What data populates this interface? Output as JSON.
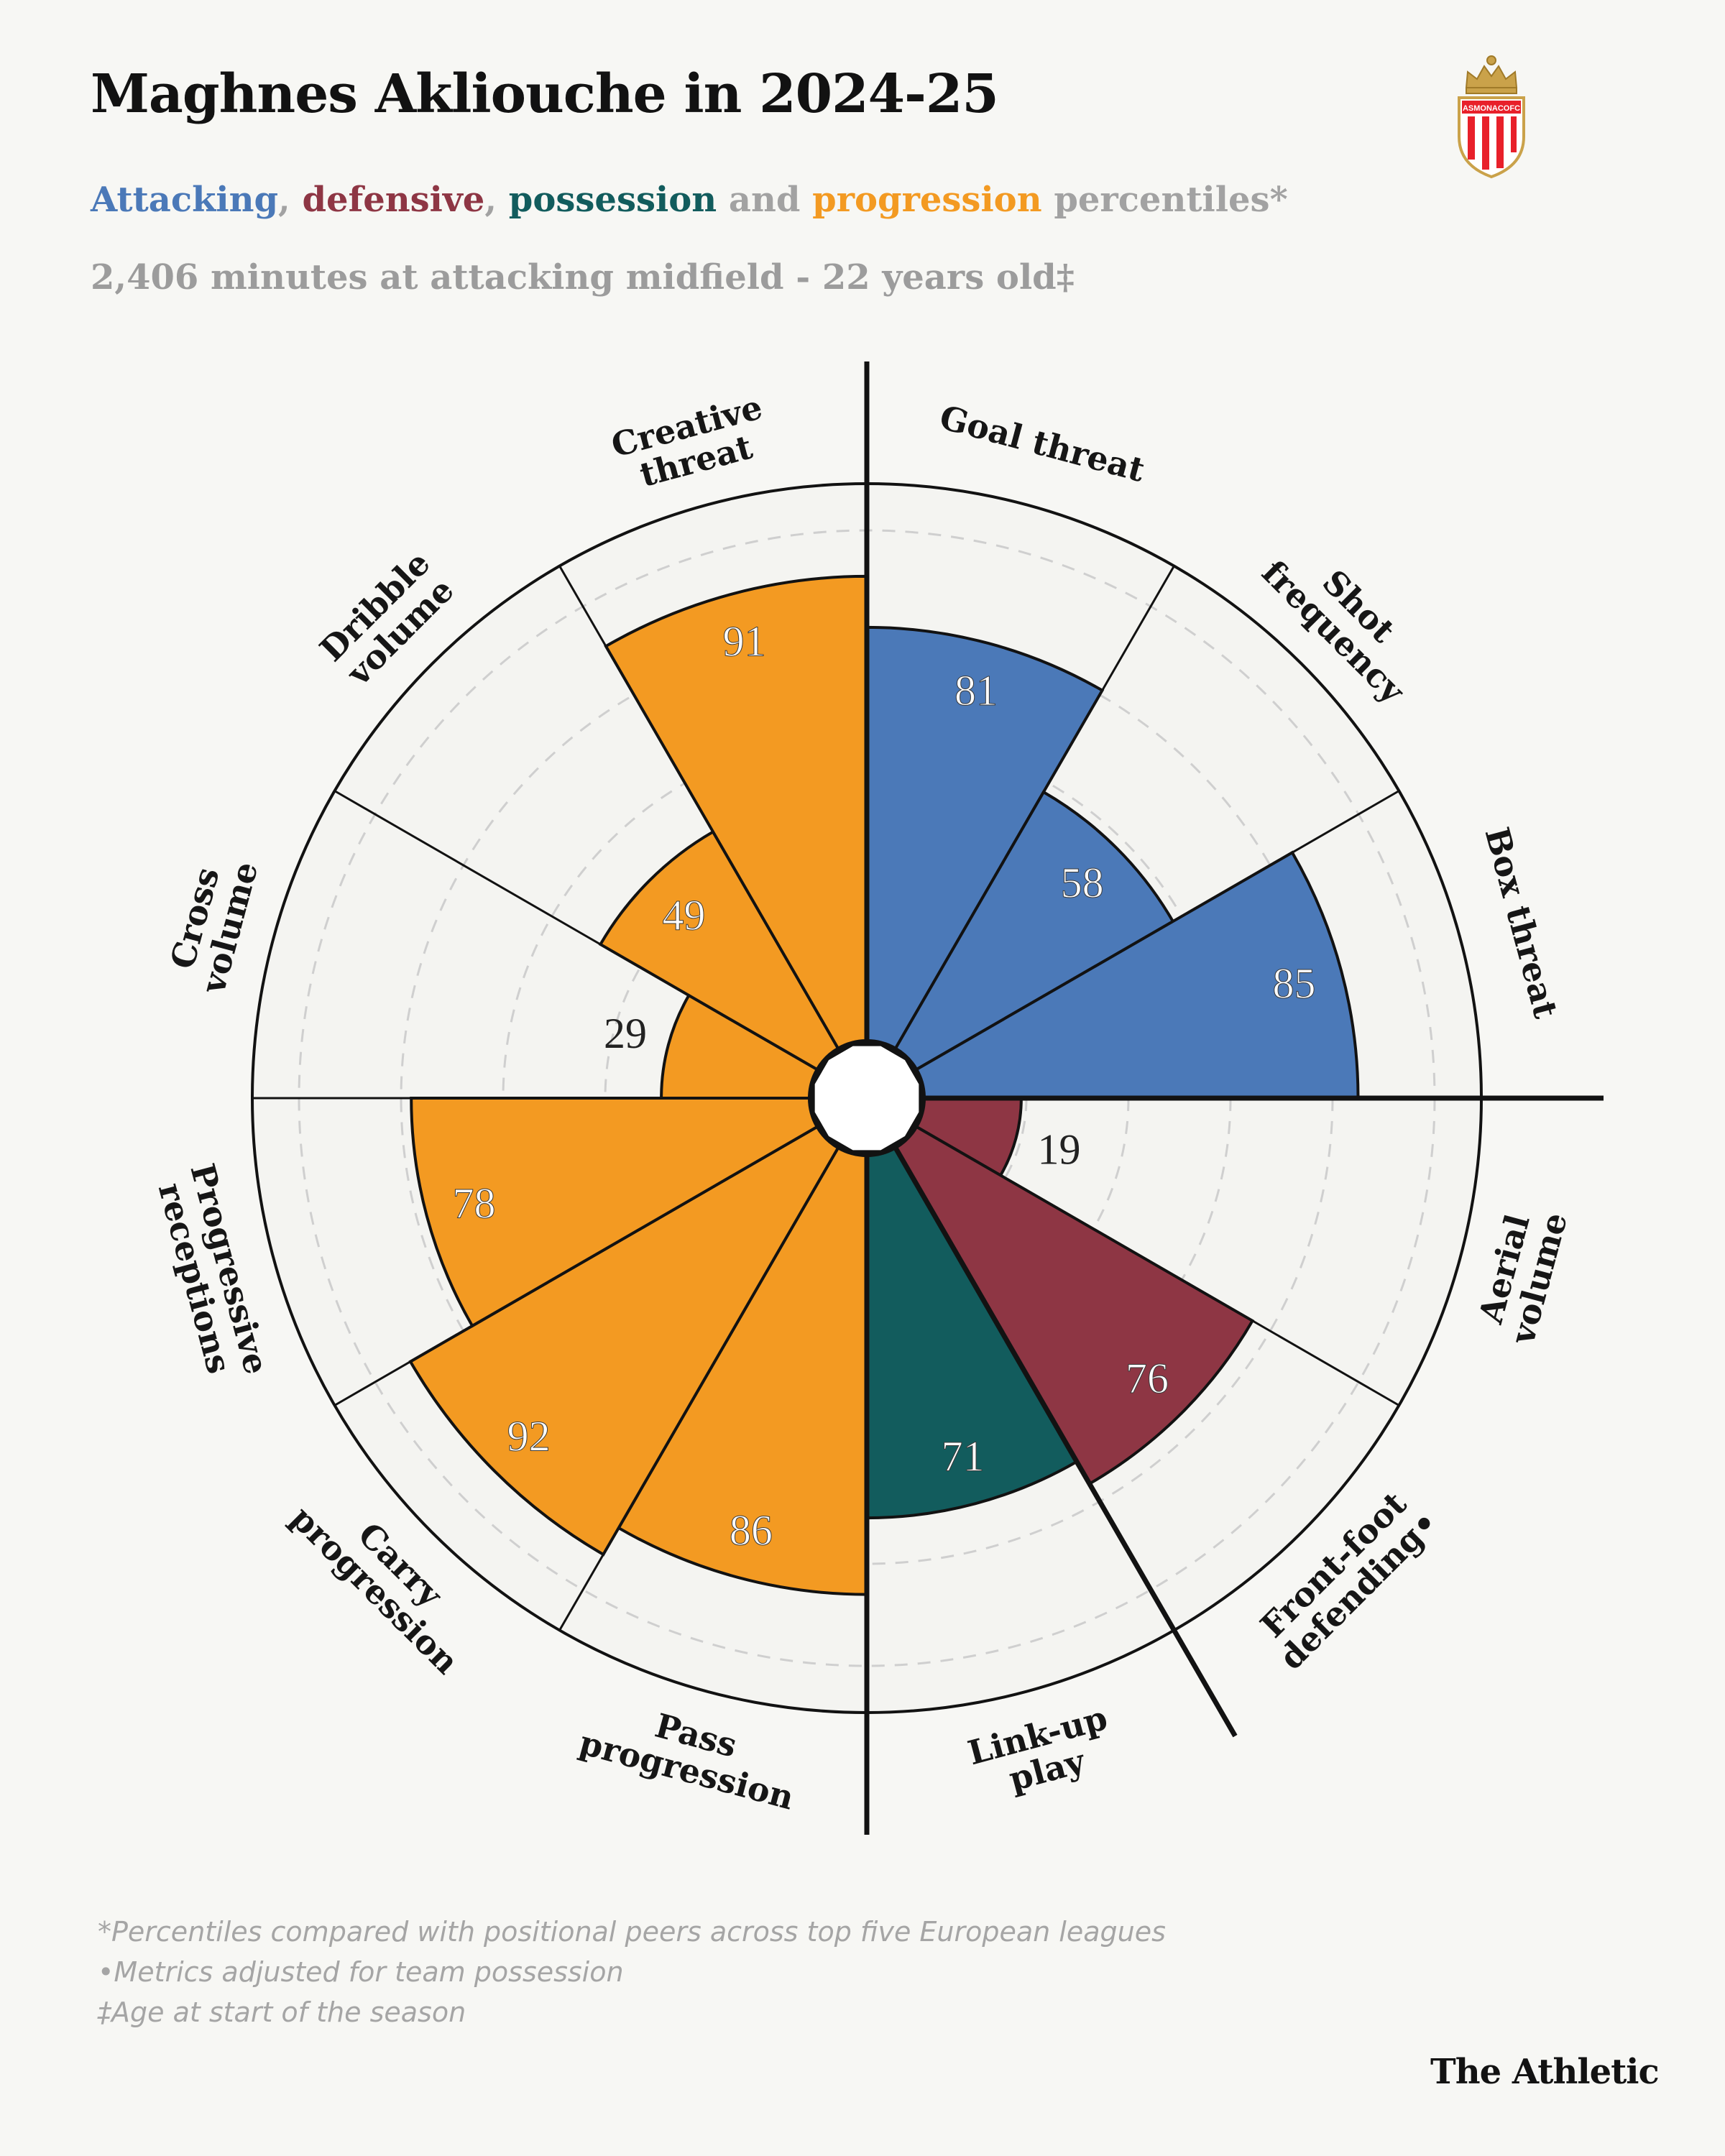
{
  "title": "Maghnes Akliouche in 2024-25",
  "subtitle": {
    "attacking": "Attacking",
    "sep1": ",",
    "defensive": "defensive",
    "sep2": ",",
    "possession": "possession",
    "and": "and",
    "progression": "progression",
    "tail": "percentiles*"
  },
  "minutes_line": "2,406 minutes at attacking midfield - 22 years old‡",
  "logo": {
    "name": "as-monaco-crest",
    "text": "ASMONACOFC"
  },
  "colors": {
    "attacking": "#4b79b8",
    "defensive": "#8e3644",
    "possession": "#125c5d",
    "progression": "#f39a22",
    "background": "#f7f7f4",
    "ring": "#121212",
    "grid": "#cfcfcf"
  },
  "chart_data": {
    "type": "polar-bar",
    "rlim": [
      0,
      100
    ],
    "grid": "dashed rings at 20, 40, 60, 80",
    "metrics": [
      {
        "label": "Goal threat",
        "value": 81,
        "group": "attacking"
      },
      {
        "label": "Shot frequency",
        "value": 58,
        "group": "attacking"
      },
      {
        "label": "Box threat",
        "value": 85,
        "group": "attacking"
      },
      {
        "label": "Aerial volume",
        "value": 19,
        "group": "defensive"
      },
      {
        "label": "Front-foot defending•",
        "value": 76,
        "group": "defensive"
      },
      {
        "label": "Link-up play",
        "value": 71,
        "group": "possession"
      },
      {
        "label": "Pass progression",
        "value": 86,
        "group": "progression"
      },
      {
        "label": "Carry progression",
        "value": 92,
        "group": "progression"
      },
      {
        "label": "Progressive receptions",
        "value": 78,
        "group": "progression"
      },
      {
        "label": "Cross volume",
        "value": 29,
        "group": "progression"
      },
      {
        "label": "Dribble volume",
        "value": 49,
        "group": "progression"
      },
      {
        "label": "Creative threat",
        "value": 91,
        "group": "progression"
      }
    ]
  },
  "footnotes": [
    "*Percentiles compared with positional peers across top five European leagues",
    "•Metrics adjusted for team possession",
    "‡Age at start of the season"
  ],
  "brand": "The Athletic"
}
